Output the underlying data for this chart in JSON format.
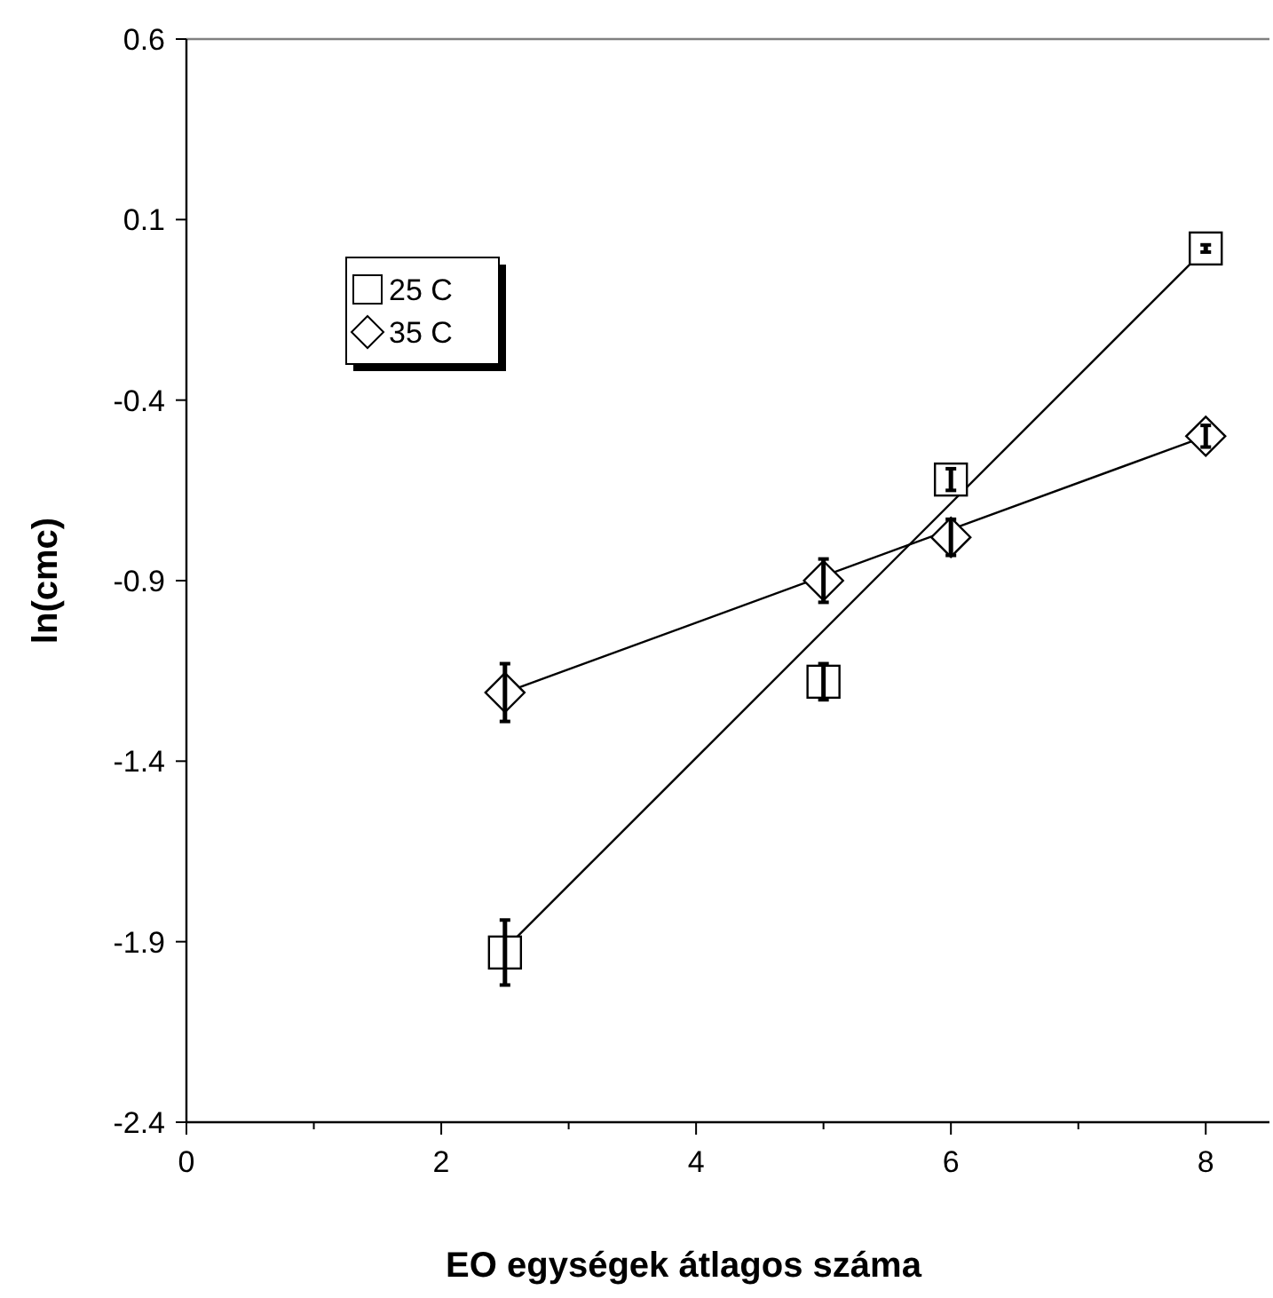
{
  "chart_data": {
    "type": "scatter",
    "xlabel": "EO egységek átlagos száma",
    "ylabel": "ln(cmc)",
    "xlim": [
      0,
      8.5
    ],
    "xticks": [
      0,
      {
        "value": 1,
        "label": null
      },
      2,
      {
        "value": 3,
        "label": null
      },
      4,
      {
        "value": 5,
        "label": null
      },
      6,
      {
        "value": 7,
        "label": null
      },
      8
    ],
    "ylim": [
      -2.4,
      0.6
    ],
    "yticks": [
      -2.4,
      -1.9,
      -1.4,
      -0.9,
      -0.4,
      0.1,
      0.6
    ],
    "grid": false,
    "legend": "top left",
    "ref_lines": [
      {
        "axis": "y",
        "value": 0.6,
        "color": "#808080"
      }
    ],
    "series": [
      {
        "name": "25 C",
        "marker": "square",
        "color": "#000000",
        "x": [
          2.5,
          5,
          6,
          8
        ],
        "values": [
          -1.93,
          -1.18,
          -0.62,
          0.02
        ],
        "errors": [
          0.09,
          0.05,
          0.03,
          0.01
        ]
      },
      {
        "name": "35 C",
        "marker": "diamond",
        "color": "#000000",
        "x": [
          2.5,
          5,
          6,
          8
        ],
        "values": [
          -1.21,
          -0.9,
          -0.78,
          -0.5
        ],
        "errors": [
          0.08,
          0.06,
          0.05,
          0.03
        ]
      },
      {
        "type": "line",
        "color": "#000000",
        "x": [
          2.5,
          8
        ],
        "values": [
          -1.92,
          0.02
        ]
      },
      {
        "type": "line",
        "color": "#000000",
        "x": [
          2.5,
          8
        ],
        "values": [
          -1.21,
          -0.5
        ]
      }
    ]
  }
}
